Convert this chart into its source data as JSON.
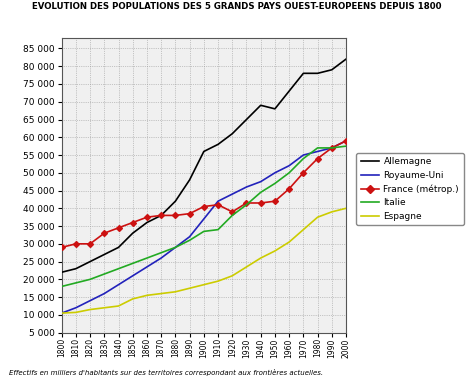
{
  "title": "EVOLUTION DES POPULATIONS DES 5 GRANDS PAYS OUEST-EUROPEENS DEPUIS 1800",
  "footnote": "Effectifs en milliers d'habitants sur des territoires correspondant aux frontières actuelles.",
  "years": [
    1800,
    1810,
    1820,
    1830,
    1840,
    1850,
    1860,
    1870,
    1880,
    1890,
    1900,
    1910,
    1920,
    1930,
    1940,
    1950,
    1960,
    1970,
    1980,
    1990,
    2000
  ],
  "Allemagne": [
    22000,
    23000,
    25000,
    27000,
    29000,
    33000,
    36000,
    38000,
    42000,
    48000,
    56000,
    58000,
    61000,
    65000,
    69000,
    68000,
    73000,
    78000,
    78000,
    79000,
    82000
  ],
  "Royaume-Uni": [
    10500,
    12000,
    14000,
    16000,
    18500,
    21000,
    23500,
    26000,
    29000,
    32000,
    37000,
    42000,
    44000,
    46000,
    47500,
    50000,
    52000,
    55000,
    56000,
    57000,
    59000
  ],
  "France": [
    29000,
    30000,
    30000,
    33000,
    34500,
    36000,
    37500,
    38000,
    38000,
    38500,
    40500,
    41000,
    39000,
    41500,
    41500,
    42000,
    45500,
    50000,
    54000,
    57000,
    59000
  ],
  "Italie": [
    18000,
    19000,
    20000,
    21500,
    23000,
    24500,
    26000,
    27500,
    29000,
    31000,
    33500,
    34000,
    38000,
    41000,
    44500,
    47000,
    50000,
    54000,
    57000,
    57000,
    57500
  ],
  "Espagne": [
    10500,
    10700,
    11500,
    12000,
    12500,
    14500,
    15500,
    16000,
    16500,
    17500,
    18500,
    19500,
    21000,
    23500,
    26000,
    28000,
    30500,
    34000,
    37500,
    39000,
    40000
  ],
  "colors": {
    "Allemagne": "#000000",
    "Royaume-Uni": "#2222bb",
    "France": "#cc1111",
    "Italie": "#22aa22",
    "Espagne": "#cccc00"
  },
  "legend_labels": [
    "Allemagne",
    "Royaume-Uni",
    "France (métrop.)",
    "Italie",
    "Espagne"
  ],
  "ylim": [
    5000,
    88000
  ],
  "yticks": [
    5000,
    10000,
    15000,
    20000,
    25000,
    30000,
    35000,
    40000,
    45000,
    50000,
    55000,
    60000,
    65000,
    70000,
    75000,
    80000,
    85000
  ],
  "fig_bg": "#ffffff",
  "plot_bg": "#f0f0f0"
}
